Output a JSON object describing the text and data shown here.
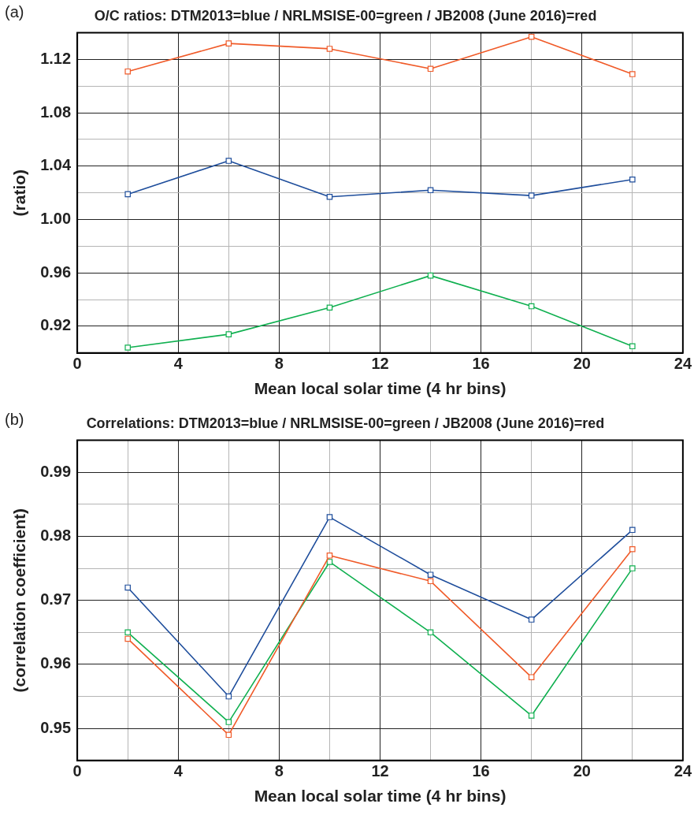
{
  "chart_data": [
    {
      "type": "line",
      "title": "O/C ratios: DTM2013=blue / NRLMSISE-00=green / JB2008 (June 2016)=red",
      "xlabel": "Mean local solar time (4 hr bins)",
      "ylabel": "(ratio)",
      "annotations": [
        "(a)"
      ],
      "x": [
        2,
        6,
        10,
        14,
        18,
        22
      ],
      "series": [
        {
          "color": "#f05a28",
          "values": [
            1.111,
            1.132,
            1.128,
            1.113,
            1.137,
            1.109
          ]
        },
        {
          "color": "#1f4e9c",
          "values": [
            1.019,
            1.044,
            1.017,
            1.022,
            1.018,
            1.03
          ]
        },
        {
          "color": "#10b050",
          "values": [
            0.904,
            0.914,
            0.934,
            0.958,
            0.935,
            0.905
          ]
        }
      ],
      "xlim": [
        0,
        24
      ],
      "xticks": [
        0,
        {
          "value": 2,
          "label": null
        },
        4,
        {
          "value": 6,
          "label": null
        },
        8,
        {
          "value": 10,
          "label": null
        },
        12,
        {
          "value": 14,
          "label": null
        },
        16,
        {
          "value": 18,
          "label": null
        },
        20,
        {
          "value": 22,
          "label": null
        },
        24
      ],
      "ylim": [
        0.9,
        1.14
      ],
      "yticks": [
        0.92,
        {
          "value": 0.94,
          "label": null
        },
        0.96,
        {
          "value": 0.98,
          "label": null
        },
        {
          "value": 1.0,
          "label": "1.00"
        },
        {
          "value": 1.02,
          "label": null
        },
        1.04,
        {
          "value": 1.06,
          "label": null
        },
        1.08,
        {
          "value": 1.1,
          "label": null
        },
        1.12
      ],
      "grid": true,
      "legend": false,
      "marker": "square",
      "line_style": "solid"
    },
    {
      "type": "line",
      "title": "Correlations: DTM2013=blue / NRLMSISE-00=green / JB2008 (June 2016)=red",
      "xlabel": "Mean local solar time (4 hr bins)",
      "ylabel": "(correlation coefficient)",
      "annotations": [
        "(b)"
      ],
      "x": [
        2,
        6,
        10,
        14,
        18,
        22
      ],
      "series": [
        {
          "color": "#1f4e9c",
          "values": [
            0.972,
            0.955,
            0.983,
            0.974,
            0.967,
            0.981
          ]
        },
        {
          "color": "#f05a28",
          "values": [
            0.964,
            0.949,
            0.977,
            0.973,
            0.958,
            0.978
          ]
        },
        {
          "color": "#10b050",
          "values": [
            0.965,
            0.951,
            0.976,
            0.965,
            0.952,
            0.975
          ]
        }
      ],
      "xlim": [
        0,
        24
      ],
      "xticks": [
        0,
        {
          "value": 2,
          "label": null
        },
        4,
        {
          "value": 6,
          "label": null
        },
        8,
        {
          "value": 10,
          "label": null
        },
        12,
        {
          "value": 14,
          "label": null
        },
        16,
        {
          "value": 18,
          "label": null
        },
        20,
        {
          "value": 22,
          "label": null
        },
        24
      ],
      "ylim": [
        0.945,
        0.995
      ],
      "yticks": [
        {
          "value": 0.95,
          "label": "0.95"
        },
        {
          "value": 0.955,
          "label": null
        },
        {
          "value": 0.96,
          "label": "0.96"
        },
        {
          "value": 0.965,
          "label": null
        },
        {
          "value": 0.97,
          "label": "0.97"
        },
        {
          "value": 0.975,
          "label": null
        },
        {
          "value": 0.98,
          "label": "0.98"
        },
        {
          "value": 0.985,
          "label": null
        },
        {
          "value": 0.99,
          "label": "0.99"
        }
      ],
      "grid": true,
      "legend": false,
      "marker": "square",
      "line_style": "solid"
    }
  ]
}
